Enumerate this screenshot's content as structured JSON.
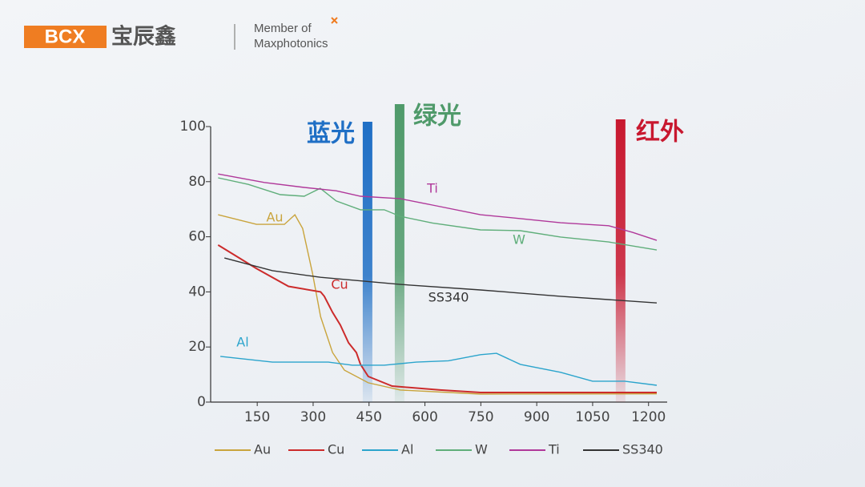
{
  "header": {
    "logo": "BCX",
    "brand": "宝辰鑫",
    "member_line1": "Member of",
    "member_line2": "Maxphotonics"
  },
  "chart_data": {
    "type": "line",
    "xlim": [
      25,
      1250
    ],
    "xticks": [
      150,
      300,
      450,
      600,
      750,
      900,
      1050,
      1200
    ],
    "ylim": [
      0,
      100
    ],
    "yticks": [
      0,
      20,
      40,
      60,
      80,
      100
    ],
    "bands": [
      {
        "label": "蓝光",
        "x": 446,
        "color": "#1f6fc5"
      },
      {
        "label": "绿光",
        "x": 532,
        "color": "#4f9a6a"
      },
      {
        "label": "红外",
        "x": 1125,
        "color": "#c8182f"
      }
    ],
    "series": [
      {
        "name": "Au",
        "color": "#c9a43c",
        "x": [
          45,
          148,
          223,
          251,
          272,
          298,
          320,
          352,
          384,
          448,
          534,
          749,
          1222
        ],
        "values": [
          68,
          64.5,
          64.5,
          68,
          63,
          47,
          31,
          18,
          11.6,
          7,
          4.4,
          2.9,
          3
        ]
      },
      {
        "name": "Cu",
        "color": "#cc2b2b",
        "x": [
          45,
          148,
          234,
          320,
          330,
          352,
          373,
          395,
          416,
          427,
          448,
          512,
          641,
          749,
          1222
        ],
        "values": [
          57,
          48.5,
          42,
          40,
          38.4,
          32.6,
          28,
          21.5,
          18,
          13.7,
          9.3,
          5.8,
          4.4,
          3.5,
          3.5
        ]
      },
      {
        "name": "Al",
        "color": "#2ba4cc",
        "x": [
          51,
          191,
          341,
          405,
          491,
          577,
          663,
          749,
          792,
          856,
          964,
          1050,
          1136,
          1222
        ],
        "values": [
          16.6,
          14.5,
          14.5,
          13.4,
          13.4,
          14.5,
          15,
          17.2,
          17.7,
          13.7,
          10.8,
          7.6,
          7.6,
          6.1
        ]
      },
      {
        "name": "W",
        "color": "#5fae7a",
        "x": [
          45,
          126,
          212,
          276,
          319,
          362,
          427,
          491,
          534,
          620,
          749,
          856,
          964,
          1093,
          1222
        ],
        "values": [
          81.4,
          79,
          75.3,
          74.7,
          77.6,
          73,
          69.8,
          69.8,
          67.4,
          65,
          62.5,
          62.2,
          59.9,
          58.1,
          55.2
        ]
      },
      {
        "name": "Ti",
        "color": "#b0389a",
        "x": [
          45,
          169,
          276,
          362,
          427,
          534,
          620,
          749,
          856,
          964,
          1093,
          1157,
          1222
        ],
        "values": [
          82.8,
          79.7,
          77.9,
          76.7,
          74.7,
          73.8,
          71.5,
          68,
          66.6,
          65.1,
          64,
          61.6,
          58.7
        ]
      },
      {
        "name": "SS340",
        "color": "#333333",
        "x": [
          62,
          191,
          320,
          534,
          749,
          964,
          1222
        ],
        "values": [
          52.3,
          47.7,
          45.3,
          42.7,
          40.7,
          38.4,
          36
        ]
      }
    ]
  }
}
